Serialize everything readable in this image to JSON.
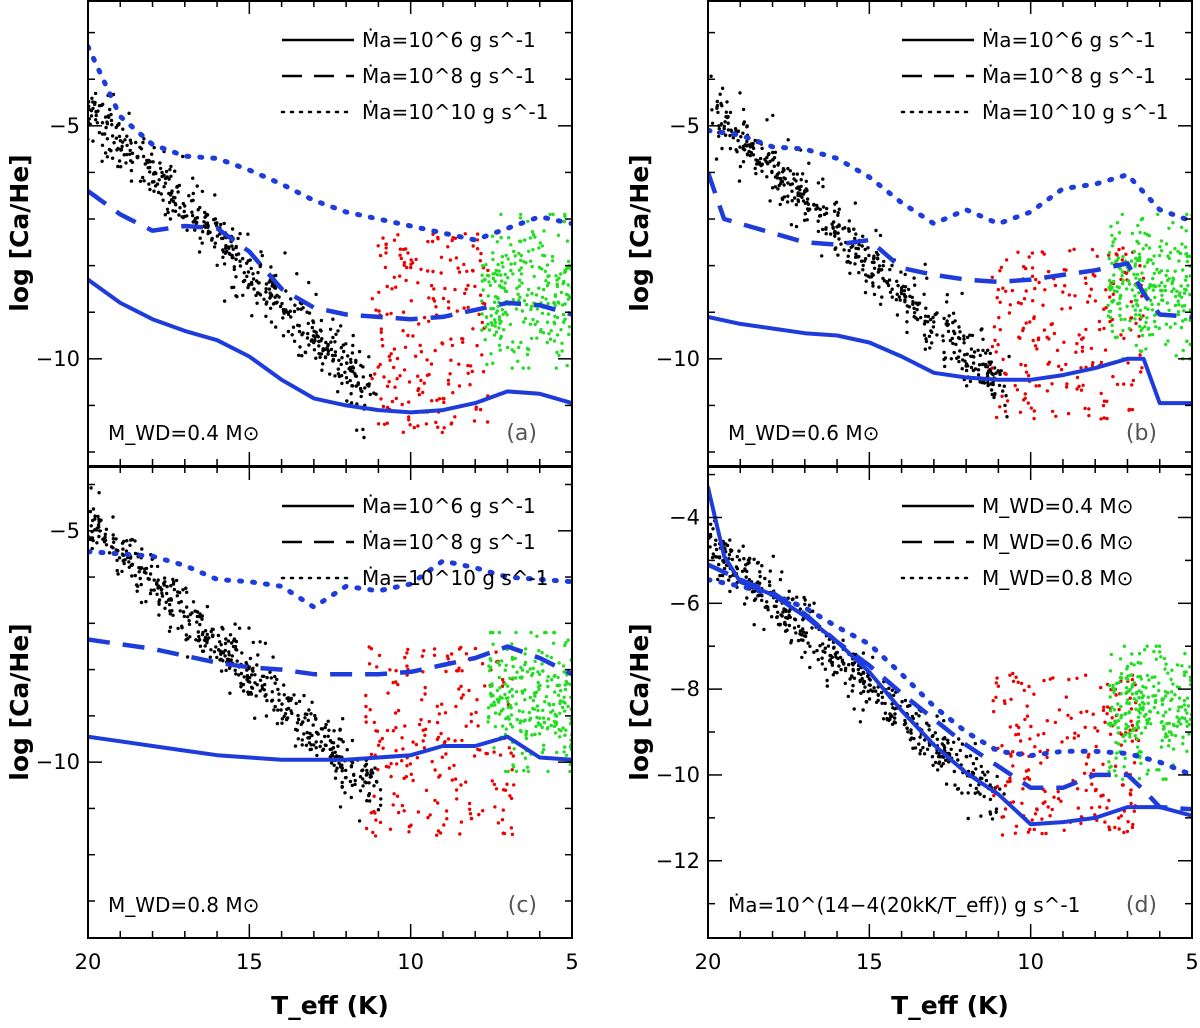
{
  "chart_data": {
    "type": "scatter",
    "title": "",
    "shared_x": {
      "xlabel": "T_eff (K)",
      "xlim": [
        20,
        5
      ],
      "xticks": [
        20,
        15,
        10,
        5
      ],
      "xtick_labels": [
        "20",
        "15",
        "10",
        "5"
      ]
    },
    "colors": {
      "model": "#1e3cdc",
      "cool_sample": "#000000",
      "mid_sample": "#ee0000",
      "dz_sample": "#22dd22"
    },
    "panels": [
      {
        "id": "a",
        "letter": "(a)",
        "ylabel": "log [Ca/He]",
        "ylim": [
          -12.3,
          -2.3
        ],
        "yticks": [
          -10,
          -5
        ],
        "ytick_labels": [
          "−10",
          "−5"
        ],
        "annotation": "M_WD=0.4 M⊙",
        "legend": [
          {
            "style": "solid",
            "label": "Ṁa=10^6 g s^-1"
          },
          {
            "style": "dashed",
            "label": "Ṁa=10^8 g s^-1"
          },
          {
            "style": "dotted",
            "label": "Ṁa=10^10 g s^-1"
          }
        ],
        "series": [
          {
            "name": "Ṁa = 1e6 g/s",
            "style": "solid",
            "x": [
              20,
              19,
              18,
              17,
              16,
              15,
              14,
              13,
              12,
              11,
              10,
              9,
              8,
              7,
              6,
              5
            ],
            "y": [
              -8.3,
              -8.8,
              -9.15,
              -9.4,
              -9.6,
              -9.95,
              -10.45,
              -10.85,
              -11.0,
              -11.1,
              -11.15,
              -11.1,
              -10.95,
              -10.7,
              -10.75,
              -10.95
            ]
          },
          {
            "name": "Ṁa = 1e8 g/s",
            "style": "dashed",
            "x": [
              20,
              19,
              18,
              17,
              16,
              15,
              14,
              13,
              12,
              11,
              10,
              9,
              8,
              7,
              6,
              5
            ],
            "y": [
              -6.4,
              -6.9,
              -7.25,
              -7.15,
              -7.2,
              -7.7,
              -8.5,
              -8.9,
              -9.05,
              -9.1,
              -9.15,
              -9.1,
              -8.95,
              -8.8,
              -8.85,
              -9.05
            ]
          },
          {
            "name": "Ṁa = 1e10 g/s",
            "style": "dotted",
            "x": [
              20,
              19,
              18,
              17,
              16,
              15,
              14,
              13,
              12,
              11,
              10,
              9,
              8,
              7,
              6,
              5
            ],
            "y": [
              -3.3,
              -4.8,
              -5.4,
              -5.65,
              -5.7,
              -5.95,
              -6.25,
              -6.6,
              -6.85,
              -7.0,
              -7.15,
              -7.3,
              -7.45,
              -7.2,
              -6.95,
              -7.1
            ]
          }
        ],
        "scatter_groups": [
          {
            "name": "cool DB sample",
            "color": "black",
            "trend_x": [
              20,
              11.2
            ],
            "trend_y": [
              -4.6,
              -10.8
            ],
            "tail_y_offset": 0,
            "n": 520,
            "count_tail": 40
          },
          {
            "name": "intermediate sample",
            "color": "red",
            "x_range": [
              11.2,
              7.6
            ],
            "y_range": [
              -11.6,
              -7.3
            ],
            "n": 210
          },
          {
            "name": "DZ sample",
            "color": "green",
            "x_range": [
              7.8,
              5.0
            ],
            "y_range": [
              -10.2,
              -6.9
            ],
            "center_y": -8.6,
            "n": 260
          }
        ]
      },
      {
        "id": "b",
        "letter": "(b)",
        "ylabel": "log [Ca/He]",
        "ylim": [
          -12.3,
          -2.3
        ],
        "yticks": [
          -10,
          -5
        ],
        "ytick_labels": [
          "−10",
          "−5"
        ],
        "annotation": "M_WD=0.6 M⊙",
        "legend": [
          {
            "style": "solid",
            "label": "Ṁa=10^6 g s^-1"
          },
          {
            "style": "dashed",
            "label": "Ṁa=10^8 g s^-1"
          },
          {
            "style": "dotted",
            "label": "Ṁa=10^10 g s^-1"
          }
        ],
        "series": [
          {
            "name": "Ṁa = 1e6 g/s",
            "style": "solid",
            "x": [
              20,
              19,
              18,
              17,
              16,
              15,
              14,
              13,
              12,
              11,
              10,
              9,
              8,
              7,
              6.5,
              6,
              5
            ],
            "y": [
              -9.1,
              -9.25,
              -9.35,
              -9.45,
              -9.5,
              -9.65,
              -9.95,
              -10.3,
              -10.4,
              -10.45,
              -10.45,
              -10.35,
              -10.2,
              -10.0,
              -10.0,
              -10.95,
              -10.95
            ]
          },
          {
            "name": "Ṁa = 1e8 g/s",
            "style": "dashed",
            "x": [
              20,
              19.5,
              19,
              18,
              17,
              16,
              15,
              14,
              13,
              12,
              11,
              10,
              9,
              8,
              7,
              6.5,
              6,
              5
            ],
            "y": [
              -6.0,
              -7.0,
              -7.1,
              -7.3,
              -7.5,
              -7.55,
              -7.45,
              -8.05,
              -8.2,
              -8.3,
              -8.35,
              -8.3,
              -8.2,
              -8.1,
              -7.95,
              -8.6,
              -9.05,
              -9.1
            ]
          },
          {
            "name": "Ṁa = 1e10 g/s",
            "style": "dotted",
            "x": [
              20,
              19,
              18,
              17,
              16,
              15,
              14,
              13,
              12.5,
              12,
              11,
              10,
              9,
              8,
              7,
              6,
              5
            ],
            "y": [
              -5.1,
              -5.2,
              -5.45,
              -5.5,
              -5.7,
              -6.1,
              -6.65,
              -7.1,
              -6.95,
              -6.8,
              -7.1,
              -6.85,
              -6.35,
              -6.25,
              -6.05,
              -6.8,
              -7.05
            ]
          }
        ],
        "scatter_groups": [
          {
            "name": "cool DB sample",
            "color": "black",
            "trend_x": [
              20,
              10.8
            ],
            "trend_y": [
              -4.6,
              -10.7
            ],
            "n": 520
          },
          {
            "name": "intermediate sample",
            "color": "red",
            "x_range": [
              11.2,
              6.5
            ],
            "y_range": [
              -11.3,
              -7.6
            ],
            "n": 210
          },
          {
            "name": "DZ sample",
            "color": "green",
            "x_range": [
              7.6,
              5.0
            ],
            "y_range": [
              -10.0,
              -6.9
            ],
            "center_y": -8.5,
            "n": 260
          }
        ]
      },
      {
        "id": "c",
        "letter": "(c)",
        "ylabel": "log [Ca/He]",
        "ylim": [
          -13.8,
          -3.6
        ],
        "yticks": [
          -10,
          -5
        ],
        "ytick_labels": [
          "−10",
          "−5"
        ],
        "annotation": "M_WD=0.8 M⊙",
        "legend": [
          {
            "style": "solid",
            "label": "Ṁa=10^6 g s^-1"
          },
          {
            "style": "dashed",
            "label": "Ṁa=10^8 g s^-1"
          },
          {
            "style": "dotted",
            "label": "Ṁa=10^10 g s^-1"
          }
        ],
        "series": [
          {
            "name": "Ṁa = 1e6 g/s",
            "style": "solid",
            "x": [
              20,
              19,
              18,
              17,
              16,
              15,
              14,
              13,
              12,
              11,
              10,
              9,
              8,
              7,
              6,
              5
            ],
            "y": [
              -9.45,
              -9.55,
              -9.65,
              -9.75,
              -9.85,
              -9.9,
              -9.95,
              -9.95,
              -9.95,
              -9.9,
              -9.85,
              -9.65,
              -9.65,
              -9.45,
              -9.9,
              -9.95
            ]
          },
          {
            "name": "Ṁa = 1e8 g/s",
            "style": "dashed",
            "x": [
              20,
              19,
              18,
              17,
              16,
              15,
              14,
              13,
              12,
              11,
              10,
              9,
              8,
              7,
              6,
              5
            ],
            "y": [
              -7.35,
              -7.45,
              -7.55,
              -7.7,
              -7.85,
              -7.95,
              -8.0,
              -8.1,
              -8.1,
              -8.1,
              -8.05,
              -7.9,
              -7.75,
              -7.5,
              -7.75,
              -8.1
            ]
          },
          {
            "name": "Ṁa = 1e10 g/s",
            "style": "dotted",
            "x": [
              20,
              19,
              18,
              17,
              16,
              15,
              14,
              13,
              12,
              11,
              10,
              9,
              8,
              7,
              6,
              5
            ],
            "y": [
              -5.45,
              -5.5,
              -5.55,
              -5.75,
              -6.05,
              -6.1,
              -6.2,
              -6.65,
              -6.2,
              -6.3,
              -6.15,
              -5.65,
              -5.8,
              -6.0,
              -6.05,
              -6.1
            ]
          }
        ],
        "scatter_groups": [
          {
            "name": "cool DB sample",
            "color": "black",
            "trend_x": [
              20,
              11.0
            ],
            "trend_y": [
              -4.8,
              -10.7
            ],
            "n": 520
          },
          {
            "name": "intermediate sample",
            "color": "red",
            "x_range": [
              11.4,
              6.8
            ],
            "y_range": [
              -11.6,
              -7.5
            ],
            "n": 210
          },
          {
            "name": "DZ sample",
            "color": "green",
            "x_range": [
              7.6,
              5.0
            ],
            "y_range": [
              -10.2,
              -7.2
            ],
            "center_y": -8.7,
            "n": 260
          }
        ]
      },
      {
        "id": "d",
        "letter": "(d)",
        "ylabel": "log [Ca/He]",
        "ylim": [
          -13.8,
          -2.8
        ],
        "yticks": [
          -12,
          -10,
          -8,
          -6,
          -4
        ],
        "ytick_labels": [
          "−12",
          "−10",
          "−8",
          "−6",
          "−4"
        ],
        "annotation": "Ṁa=10^(14−4(20kK/T_eff)) g s^-1",
        "legend": [
          {
            "style": "solid",
            "label": "M_WD=0.4 M⊙"
          },
          {
            "style": "dashed",
            "label": "M_WD=0.6 M⊙"
          },
          {
            "style": "dotted",
            "label": "M_WD=0.8 M⊙"
          }
        ],
        "series": [
          {
            "name": "M_WD = 0.4 Msun",
            "style": "solid",
            "x": [
              20,
              19.5,
              19,
              18,
              17,
              16,
              15,
              14,
              13,
              12,
              11,
              10,
              9,
              8,
              7,
              6,
              5
            ],
            "y": [
              -3.3,
              -4.9,
              -5.5,
              -5.8,
              -6.3,
              -6.9,
              -7.6,
              -8.5,
              -9.3,
              -9.95,
              -10.45,
              -11.15,
              -11.1,
              -11.0,
              -10.75,
              -10.75,
              -10.95
            ]
          },
          {
            "name": "M_WD = 0.6 Msun",
            "style": "dashed",
            "x": [
              20,
              19,
              18,
              17,
              16,
              15,
              14,
              13,
              12,
              11,
              10,
              9,
              8,
              7,
              6.5,
              6,
              5
            ],
            "y": [
              -5.1,
              -5.45,
              -5.75,
              -6.25,
              -6.9,
              -7.45,
              -8.1,
              -8.7,
              -9.3,
              -9.8,
              -10.3,
              -10.3,
              -10.0,
              -10.0,
              -10.35,
              -10.75,
              -10.8
            ]
          },
          {
            "name": "M_WD = 0.8 Msun",
            "style": "dotted",
            "x": [
              20,
              19,
              18,
              17,
              16,
              15,
              14,
              13,
              12,
              11,
              10,
              9,
              8,
              7,
              6,
              5
            ],
            "y": [
              -5.45,
              -5.6,
              -5.8,
              -6.1,
              -6.55,
              -6.95,
              -7.65,
              -8.4,
              -9.0,
              -9.45,
              -9.55,
              -9.45,
              -9.45,
              -9.5,
              -9.7,
              -10.0
            ]
          }
        ],
        "scatter_groups": [
          {
            "name": "cool DB sample",
            "color": "black",
            "trend_x": [
              20,
              11.0
            ],
            "trend_y": [
              -4.6,
              -10.6
            ],
            "n": 520
          },
          {
            "name": "intermediate sample",
            "color": "red",
            "x_range": [
              11.2,
              6.6
            ],
            "y_range": [
              -11.4,
              -7.6
            ],
            "n": 210
          },
          {
            "name": "DZ sample",
            "color": "green",
            "x_range": [
              7.6,
              5.0
            ],
            "y_range": [
              -10.1,
              -7.0
            ],
            "center_y": -8.5,
            "n": 260
          }
        ]
      }
    ]
  }
}
